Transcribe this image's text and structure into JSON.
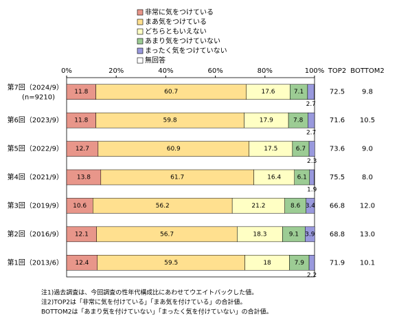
{
  "chart_data": {
    "type": "stacked-bar-horizontal",
    "categories": [
      "第7回（2024/9）",
      "第6回（2023/9）",
      "第5回（2022/9）",
      "第4回（2021/9）",
      "第3回（2019/9）",
      "第2回（2016/9）",
      "第1回（2013/6）"
    ],
    "sample_size_label": "(n=9210)",
    "series": [
      {
        "name": "非常に気をつけている",
        "color": "#e8968a",
        "values": [
          11.8,
          11.8,
          12.7,
          13.8,
          10.6,
          12.1,
          12.4
        ]
      },
      {
        "name": "まあ気をつけている",
        "color": "#ffe08f",
        "values": [
          60.7,
          59.8,
          60.9,
          61.7,
          56.2,
          56.7,
          59.5
        ]
      },
      {
        "name": "どちらともいえない",
        "color": "#ffffc4",
        "values": [
          17.6,
          17.9,
          17.5,
          16.4,
          21.2,
          18.3,
          18.0
        ]
      },
      {
        "name": "あまり気をつけていない",
        "color": "#9ccc94",
        "values": [
          7.1,
          7.8,
          6.7,
          6.1,
          8.6,
          9.1,
          7.9
        ]
      },
      {
        "name": "まったく気をつけていない",
        "color": "#9999dd",
        "values": [
          2.7,
          2.7,
          2.3,
          1.9,
          3.4,
          3.9,
          2.2
        ]
      },
      {
        "name": "無回答",
        "color": "#ffffff",
        "values": [
          0.1,
          0,
          0,
          0.1,
          0,
          0,
          0
        ]
      }
    ],
    "labeled_series_count": 5,
    "xlim": [
      0,
      100
    ],
    "xticks": [
      {
        "value": 0,
        "label": "0%"
      },
      {
        "value": 20,
        "label": "20%"
      },
      {
        "value": 40,
        "label": "40%"
      },
      {
        "value": 60,
        "label": "60%"
      },
      {
        "value": 80,
        "label": "80%"
      },
      {
        "value": 100,
        "label": "100%"
      }
    ],
    "grid": false,
    "summary_columns": [
      {
        "name": "TOP2",
        "values": [
          72.5,
          71.6,
          73.6,
          75.5,
          66.8,
          68.8,
          71.9
        ]
      },
      {
        "name": "BOTTOM2",
        "values": [
          9.8,
          10.5,
          9.0,
          8.0,
          12.0,
          13.0,
          10.1
        ],
        "value_labels": [
          "9.8",
          "10.5",
          "9.0",
          "8.0",
          "12.0",
          "13.0",
          "10.1"
        ]
      }
    ],
    "notes": [
      "注1)過去調査は、今回調査の性年代構成比にあわせてウエイトバックした値。",
      "注2)TOP2は「非常に気を付けている」「まあ気を付けている」の合計値。",
      "BOTTOM2は「あまり気を付けていない」「まったく気を付けていない」の合計値。"
    ]
  }
}
